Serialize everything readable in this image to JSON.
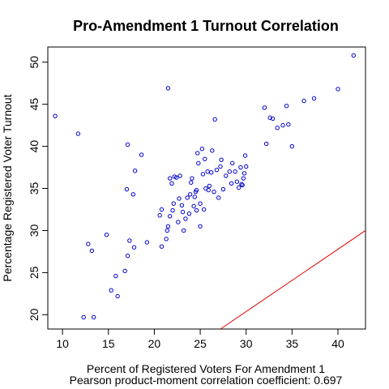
{
  "chart_data": {
    "type": "scatter",
    "title": "Pro-Amendment 1 Turnout Correlation",
    "xlabel": "Percent of Registered Voters For Amendment 1",
    "ylabel": "Percentage Registered Voter Turnout",
    "subtitle": "Pearson product-moment correlation coefficient: 0.697",
    "xlim": [
      8.4,
      43.0
    ],
    "ylim": [
      18.3,
      51.8
    ],
    "xticks": [
      10,
      15,
      20,
      25,
      30,
      35,
      40
    ],
    "yticks": [
      20,
      25,
      30,
      35,
      40,
      45,
      50
    ],
    "grid": false,
    "point_color": "#0000cc",
    "line_color": "#dd0000",
    "line": {
      "x": [
        27.2,
        43.0
      ],
      "y": [
        18.3,
        30.0
      ]
    },
    "points": [
      [
        9.2,
        43.6
      ],
      [
        11.7,
        41.5
      ],
      [
        12.3,
        19.7
      ],
      [
        12.8,
        28.4
      ],
      [
        13.2,
        27.6
      ],
      [
        13.4,
        19.7
      ],
      [
        14.8,
        29.5
      ],
      [
        15.3,
        22.9
      ],
      [
        15.8,
        24.6
      ],
      [
        16.0,
        22.2
      ],
      [
        16.8,
        25.2
      ],
      [
        17.1,
        27.0
      ],
      [
        17.0,
        34.9
      ],
      [
        17.3,
        28.8
      ],
      [
        17.7,
        34.3
      ],
      [
        17.9,
        37.1
      ],
      [
        18.6,
        39.0
      ],
      [
        17.1,
        40.2
      ],
      [
        17.8,
        28.0
      ],
      [
        19.2,
        28.6
      ],
      [
        20.6,
        31.8
      ],
      [
        20.8,
        32.5
      ],
      [
        20.8,
        28.1
      ],
      [
        21.3,
        29.0
      ],
      [
        21.4,
        30.0
      ],
      [
        21.5,
        30.5
      ],
      [
        21.5,
        46.9
      ],
      [
        21.7,
        31.7
      ],
      [
        21.7,
        36.2
      ],
      [
        21.9,
        35.6
      ],
      [
        22.0,
        32.4
      ],
      [
        22.1,
        33.2
      ],
      [
        22.2,
        36.4
      ],
      [
        22.4,
        36.3
      ],
      [
        22.6,
        31.0
      ],
      [
        22.7,
        33.8
      ],
      [
        22.8,
        36.5
      ],
      [
        23.0,
        33.0
      ],
      [
        23.1,
        32.2
      ],
      [
        23.2,
        30.0
      ],
      [
        23.4,
        31.4
      ],
      [
        23.6,
        33.9
      ],
      [
        23.8,
        32.0
      ],
      [
        23.9,
        34.3
      ],
      [
        24.0,
        35.7
      ],
      [
        24.1,
        36.2
      ],
      [
        24.3,
        32.9
      ],
      [
        24.4,
        34.0
      ],
      [
        24.5,
        34.6
      ],
      [
        24.6,
        32.4
      ],
      [
        24.6,
        34.8
      ],
      [
        24.7,
        39.2
      ],
      [
        24.8,
        38.0
      ],
      [
        25.0,
        33.2
      ],
      [
        25.0,
        30.5
      ],
      [
        25.2,
        39.7
      ],
      [
        25.3,
        36.7
      ],
      [
        25.4,
        32.5
      ],
      [
        25.5,
        38.5
      ],
      [
        25.6,
        35.0
      ],
      [
        25.8,
        37.0
      ],
      [
        25.9,
        34.8
      ],
      [
        26.0,
        35.3
      ],
      [
        26.2,
        36.9
      ],
      [
        26.3,
        39.5
      ],
      [
        26.5,
        34.6
      ],
      [
        26.6,
        43.2
      ],
      [
        26.8,
        37.2
      ],
      [
        27.0,
        33.9
      ],
      [
        27.2,
        37.6
      ],
      [
        27.3,
        38.4
      ],
      [
        27.5,
        34.9
      ],
      [
        27.8,
        36.5
      ],
      [
        28.2,
        37.0
      ],
      [
        28.4,
        35.6
      ],
      [
        28.5,
        38.0
      ],
      [
        28.8,
        37.0
      ],
      [
        29.0,
        35.8
      ],
      [
        29.2,
        35.1
      ],
      [
        29.4,
        37.5
      ],
      [
        29.5,
        35.5
      ],
      [
        29.6,
        35.4
      ],
      [
        29.7,
        36.2
      ],
      [
        29.8,
        36.8
      ],
      [
        29.9,
        38.9
      ],
      [
        30.0,
        37.6
      ],
      [
        32.0,
        44.6
      ],
      [
        32.2,
        40.3
      ],
      [
        32.6,
        43.4
      ],
      [
        32.9,
        43.3
      ],
      [
        33.4,
        42.2
      ],
      [
        34.0,
        42.5
      ],
      [
        34.4,
        44.8
      ],
      [
        34.6,
        42.6
      ],
      [
        35.0,
        40.0
      ],
      [
        36.3,
        45.4
      ],
      [
        37.4,
        45.7
      ],
      [
        40.0,
        46.8
      ],
      [
        41.7,
        50.8
      ]
    ]
  }
}
